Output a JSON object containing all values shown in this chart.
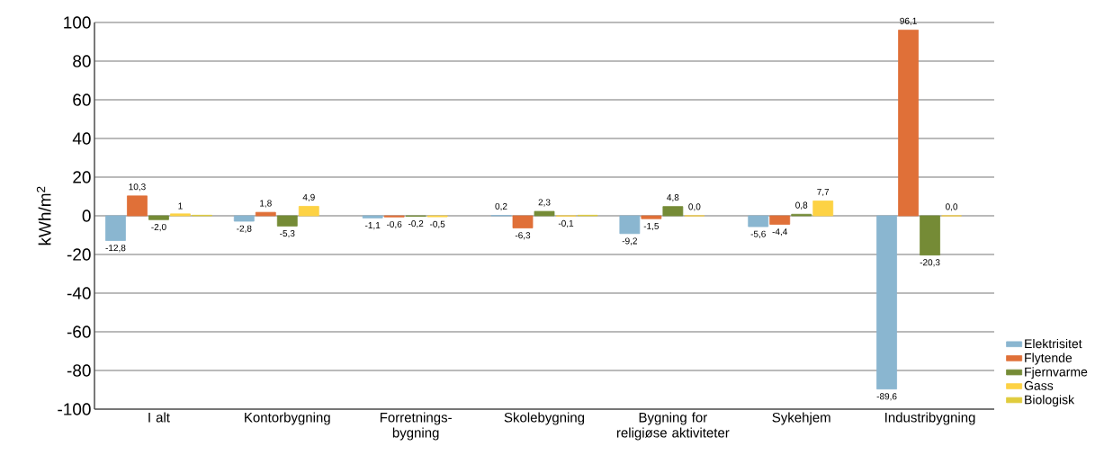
{
  "chart_data": {
    "type": "bar",
    "ylabel": "kWh/m$^{2}$",
    "categories": [
      "I alt",
      "Kontorbygning",
      "Forretnings-bygning",
      "Skolebygning",
      "Bygning for religiøse aktiviteter",
      "Sykehjem",
      "Industribygning"
    ],
    "series": [
      {
        "name": "Elektrisitet",
        "color": "#8ab6d0",
        "values": [
          -12.8,
          -2.8,
          -1.1,
          0.2,
          -9.2,
          -5.6,
          -89.6
        ],
        "value_labels": [
          "-12,8",
          "-2,8",
          "-1,1",
          "0,2",
          "-9,2",
          "-5,6",
          "-89,6"
        ]
      },
      {
        "name": "Flytende",
        "color": "#e07038",
        "values": [
          10.3,
          1.8,
          -0.6,
          -6.3,
          -1.5,
          -4.4,
          96.1
        ],
        "value_labels": [
          "10,3",
          "1,8",
          "-0,6",
          "-6,3",
          "-1,5",
          "-4,4",
          "96,1"
        ]
      },
      {
        "name": "Fjernvarme",
        "color": "#758b36",
        "values": [
          -2.0,
          -5.3,
          -0.2,
          2.3,
          4.8,
          0.8,
          -20.3
        ],
        "value_labels": [
          "-2,0",
          "-5,3",
          "-0,2",
          "2,3",
          "4,8",
          "0,8",
          "-20,3"
        ]
      },
      {
        "name": "Gass",
        "color": "#fdd244",
        "values": [
          1,
          4.9,
          -0.5,
          -0.1,
          0.0,
          7.7,
          0.0
        ],
        "value_labels": [
          "1",
          "4,9",
          "-0,5",
          "-0,1",
          "0,0",
          "7,7",
          "0,0"
        ]
      },
      {
        "name": "Biologisk",
        "color": "#e0cc3c",
        "values": [
          0.3,
          null,
          null,
          0.3,
          null,
          null,
          null
        ],
        "value_labels": [
          null,
          null,
          null,
          null,
          null,
          null,
          null
        ]
      }
    ],
    "ylim": [
      -100,
      100
    ],
    "yticks": [
      -100,
      -80,
      -60,
      -40,
      -20,
      0,
      20,
      40,
      60,
      80,
      100
    ],
    "grid": "y",
    "legend": "bottom right"
  }
}
